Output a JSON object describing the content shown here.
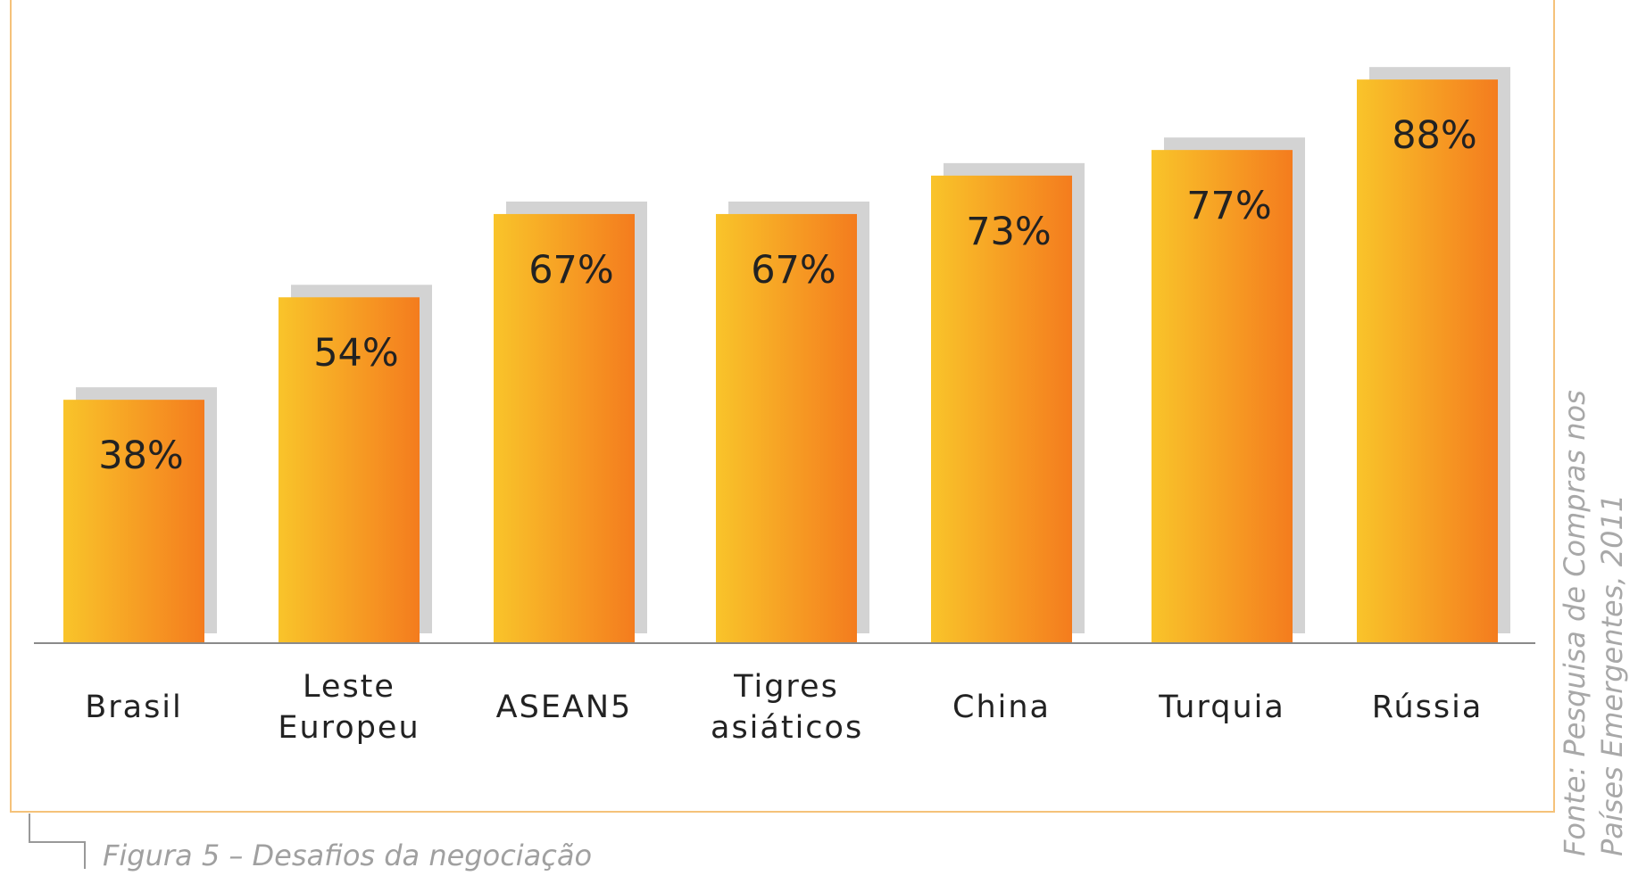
{
  "chart_data": {
    "type": "bar",
    "categories": [
      "Brasil",
      "Leste Europeu",
      "ASEAN5",
      "Tigres asiáticos",
      "China",
      "Turquia",
      "Rússia"
    ],
    "values": [
      38,
      54,
      67,
      67,
      73,
      77,
      88
    ],
    "value_labels": [
      "38%",
      "54%",
      "67%",
      "67%",
      "73%",
      "77%",
      "88%"
    ],
    "colors": [
      "#f9c42a",
      "#f47c1e"
    ],
    "ylim": [
      0,
      100
    ],
    "caption": "Figura 5 – Desafios da negociação",
    "source": "Fonte: Pesquisa de Compras nos Países Emergentes, 2011"
  }
}
